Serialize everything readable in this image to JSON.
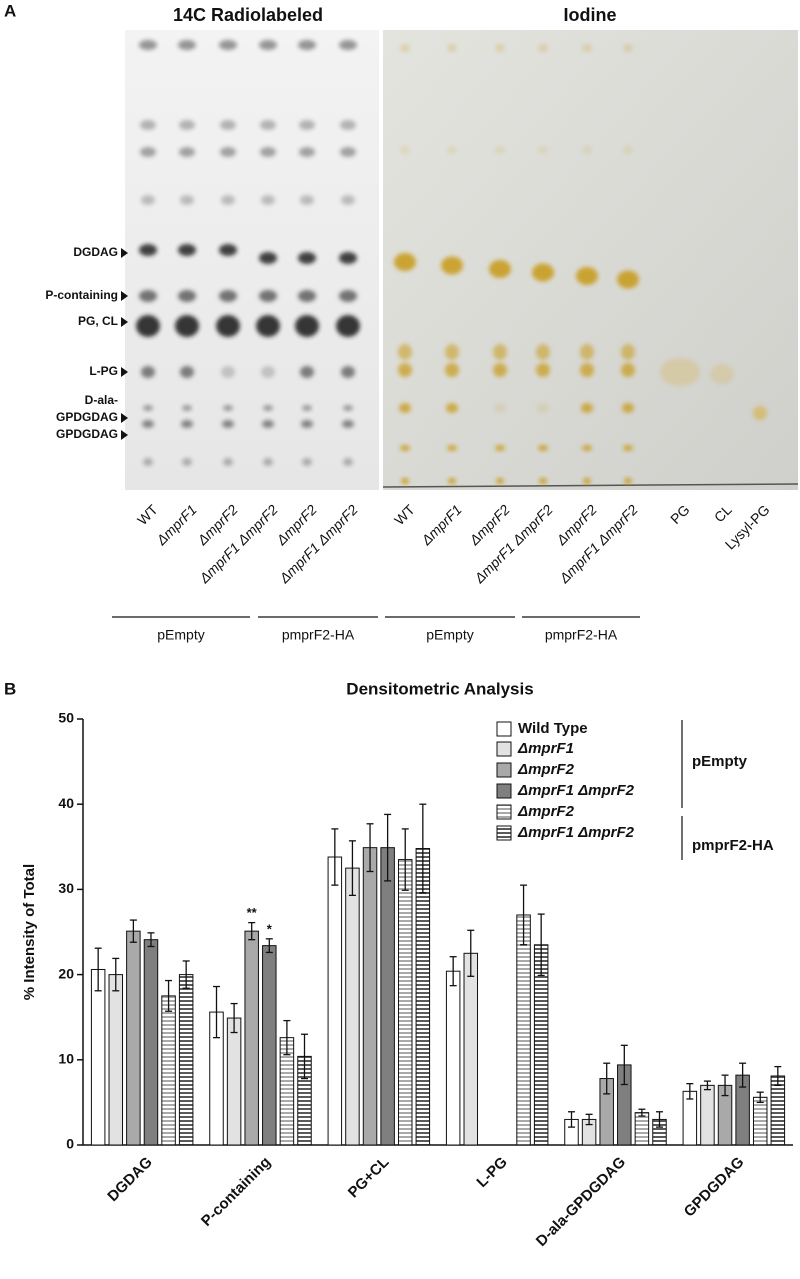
{
  "panel_a": {
    "label": "A",
    "titles": [
      "14C Radiolabeled",
      "Iodine"
    ],
    "bands": [
      "DGDAG",
      "P-containing",
      "PG, CL",
      "L-PG",
      "D-ala-",
      "GPDGDAG",
      "GPDGDAG"
    ],
    "lanes": [
      "WT",
      "ΔmprF1",
      "ΔmprF2",
      "ΔmprF1 ΔmprF2",
      "ΔmprF2",
      "ΔmprF1 ΔmprF2",
      "WT",
      "ΔmprF1",
      "ΔmprF2",
      "ΔmprF1 ΔmprF2",
      "ΔmprF2",
      "ΔmprF1 ΔmprF2",
      "PG",
      "CL",
      "Lysyl-PG"
    ],
    "groups": [
      "pEmpty",
      "pmprF2-HA",
      "pEmpty",
      "pmprF2-HA"
    ]
  },
  "chart_data": {
    "type": "bar",
    "label": "B",
    "title": "Densitometric Analysis",
    "y_label": "% Intensity of Total",
    "categories": [
      "DGDAG",
      "P-containing",
      "PG+CL",
      "L-PG",
      "D-ala-GPDGDAG",
      "GPDGDAG"
    ],
    "ylim": [
      0,
      50
    ],
    "yticks": [
      0,
      10,
      20,
      30,
      40,
      50
    ],
    "legend_groups": [
      "pEmpty",
      "pmprF2-HA"
    ],
    "series": [
      {
        "name": "Wild Type",
        "color": "#ffffff",
        "hatch": false,
        "values": [
          20.6,
          15.6,
          33.8,
          20.4,
          3.0,
          6.3
        ],
        "errors": [
          2.5,
          3.0,
          3.3,
          1.7,
          0.9,
          0.9
        ]
      },
      {
        "name": "ΔmprF1",
        "color": "#e2e2e2",
        "hatch": false,
        "values": [
          20.0,
          14.9,
          32.5,
          22.5,
          3.0,
          7.0
        ],
        "errors": [
          1.9,
          1.7,
          3.2,
          2.7,
          0.6,
          0.5
        ]
      },
      {
        "name": "ΔmprF2",
        "color": "#a9a9a9",
        "hatch": false,
        "values": [
          25.1,
          25.1,
          34.9,
          null,
          7.8,
          7.0
        ],
        "errors": [
          1.3,
          1.0,
          2.8,
          null,
          1.8,
          1.2
        ],
        "significance": [
          null,
          "**",
          null,
          null,
          null,
          null
        ]
      },
      {
        "name": "ΔmprF1 ΔmprF2",
        "color": "#7f7f7f",
        "hatch": false,
        "values": [
          24.1,
          23.4,
          34.9,
          null,
          9.4,
          8.2
        ],
        "errors": [
          0.8,
          0.8,
          3.9,
          null,
          2.3,
          1.4
        ],
        "significance": [
          null,
          "*",
          null,
          null,
          null,
          null
        ]
      },
      {
        "name": "ΔmprF2",
        "color": "#a9a9a9",
        "hatch": true,
        "values": [
          17.5,
          12.6,
          33.5,
          27.0,
          3.8,
          5.6
        ],
        "errors": [
          1.8,
          2.0,
          3.6,
          3.5,
          0.4,
          0.6
        ]
      },
      {
        "name": "ΔmprF1 ΔmprF2",
        "color": "#5a5a5a",
        "hatch": true,
        "values": [
          20.0,
          10.4,
          34.8,
          23.5,
          3.0,
          8.1
        ],
        "errors": [
          1.6,
          2.6,
          5.2,
          3.6,
          0.9,
          1.1
        ]
      }
    ]
  }
}
